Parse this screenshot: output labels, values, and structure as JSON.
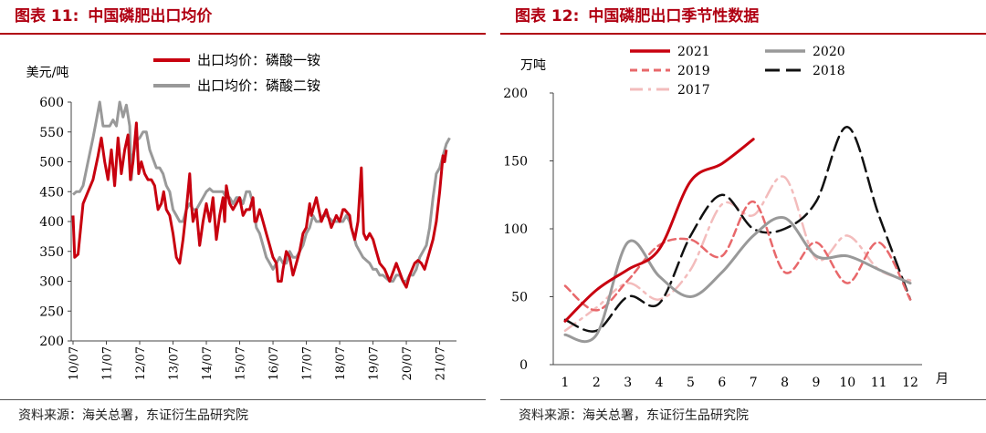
{
  "colors": {
    "accent": "#b00012",
    "red": "#c8000f",
    "gray": "#999999",
    "pink": "#e8686b",
    "black": "#111111",
    "lightpink": "#f3bcbc"
  },
  "left": {
    "title_num": "图表 11:",
    "title_name": "中国磷肥出口均价",
    "source": "资料来源：海关总署，东证衍生品研究院"
  },
  "right": {
    "title_num": "图表 12:",
    "title_name": "中国磷肥出口季节性数据",
    "source": "资料来源：海关总署，东证衍生品研究院"
  },
  "chart_data": [
    {
      "type": "line",
      "ylabel": "美元/吨",
      "ylim": [
        200,
        600
      ],
      "yticks": [
        "200",
        "250",
        "300",
        "350",
        "400",
        "450",
        "500",
        "550",
        "600"
      ],
      "xticks": [
        "10/07",
        "11/07",
        "12/07",
        "13/07",
        "14/07",
        "15/07",
        "16/07",
        "17/07",
        "18/07",
        "19/07",
        "20/07",
        "21/07"
      ],
      "legend_position": "top",
      "series": [
        {
          "name": "出口均价：磷酸一铵",
          "color": "#c8000f",
          "points": [
            [
              0,
              410
            ],
            [
              0.05,
              340
            ],
            [
              0.15,
              345
            ],
            [
              0.3,
              430
            ],
            [
              0.45,
              450
            ],
            [
              0.6,
              470
            ],
            [
              0.75,
              510
            ],
            [
              0.85,
              540
            ],
            [
              0.95,
              500
            ],
            [
              1.05,
              470
            ],
            [
              1.15,
              520
            ],
            [
              1.25,
              460
            ],
            [
              1.35,
              540
            ],
            [
              1.45,
              480
            ],
            [
              1.55,
              520
            ],
            [
              1.65,
              545
            ],
            [
              1.72,
              470
            ],
            [
              1.8,
              500
            ],
            [
              1.9,
              565
            ],
            [
              1.97,
              480
            ],
            [
              2.05,
              500
            ],
            [
              2.15,
              480
            ],
            [
              2.25,
              470
            ],
            [
              2.35,
              470
            ],
            [
              2.45,
              460
            ],
            [
              2.55,
              420
            ],
            [
              2.65,
              430
            ],
            [
              2.72,
              450
            ],
            [
              2.8,
              420
            ],
            [
              2.9,
              410
            ],
            [
              3.0,
              380
            ],
            [
              3.1,
              340
            ],
            [
              3.2,
              330
            ],
            [
              3.3,
              370
            ],
            [
              3.4,
              420
            ],
            [
              3.5,
              480
            ],
            [
              3.55,
              430
            ],
            [
              3.6,
              400
            ],
            [
              3.7,
              420
            ],
            [
              3.8,
              360
            ],
            [
              3.9,
              400
            ],
            [
              4.0,
              430
            ],
            [
              4.1,
              400
            ],
            [
              4.2,
              440
            ],
            [
              4.3,
              370
            ],
            [
              4.4,
              410
            ],
            [
              4.5,
              440
            ],
            [
              4.55,
              400
            ],
            [
              4.6,
              460
            ],
            [
              4.7,
              430
            ],
            [
              4.8,
              420
            ],
            [
              4.9,
              430
            ],
            [
              5.0,
              440
            ],
            [
              5.1,
              410
            ],
            [
              5.2,
              420
            ],
            [
              5.3,
              420
            ],
            [
              5.4,
              440
            ],
            [
              5.45,
              400
            ],
            [
              5.5,
              400
            ],
            [
              5.6,
              420
            ],
            [
              5.7,
              400
            ],
            [
              5.8,
              380
            ],
            [
              5.9,
              360
            ],
            [
              6.0,
              340
            ],
            [
              6.1,
              330
            ],
            [
              6.15,
              300
            ],
            [
              6.25,
              300
            ],
            [
              6.3,
              320
            ],
            [
              6.4,
              350
            ],
            [
              6.5,
              340
            ],
            [
              6.6,
              310
            ],
            [
              6.7,
              330
            ],
            [
              6.8,
              350
            ],
            [
              6.9,
              380
            ],
            [
              7.0,
              390
            ],
            [
              7.1,
              430
            ],
            [
              7.15,
              410
            ],
            [
              7.3,
              440
            ],
            [
              7.45,
              400
            ],
            [
              7.6,
              420
            ],
            [
              7.75,
              390
            ],
            [
              7.9,
              410
            ],
            [
              8.0,
              400
            ],
            [
              8.1,
              420
            ],
            [
              8.15,
              420
            ],
            [
              8.3,
              410
            ],
            [
              8.35,
              390
            ],
            [
              8.45,
              370
            ],
            [
              8.55,
              400
            ],
            [
              8.65,
              490
            ],
            [
              8.72,
              380
            ],
            [
              8.8,
              370
            ],
            [
              8.9,
              380
            ],
            [
              9.0,
              370
            ],
            [
              9.1,
              350
            ],
            [
              9.2,
              330
            ],
            [
              9.35,
              320
            ],
            [
              9.5,
              300
            ],
            [
              9.7,
              330
            ],
            [
              9.9,
              300
            ],
            [
              10.0,
              290
            ],
            [
              10.1,
              310
            ],
            [
              10.25,
              330
            ],
            [
              10.35,
              335
            ],
            [
              10.45,
              330
            ],
            [
              10.55,
              320
            ],
            [
              10.7,
              350
            ],
            [
              10.8,
              370
            ],
            [
              10.9,
              400
            ],
            [
              11.0,
              450
            ],
            [
              11.1,
              510
            ],
            [
              11.15,
              500
            ],
            [
              11.2,
              520
            ]
          ]
        },
        {
          "name": "出口均价：磷酸二铵",
          "color": "#999999",
          "points": [
            [
              0,
              445
            ],
            [
              0.1,
              450
            ],
            [
              0.2,
              450
            ],
            [
              0.3,
              460
            ],
            [
              0.45,
              500
            ],
            [
              0.6,
              540
            ],
            [
              0.7,
              570
            ],
            [
              0.8,
              600
            ],
            [
              0.9,
              560
            ],
            [
              1.0,
              560
            ],
            [
              1.1,
              560
            ],
            [
              1.2,
              570
            ],
            [
              1.3,
              560
            ],
            [
              1.4,
              600
            ],
            [
              1.5,
              575
            ],
            [
              1.6,
              595
            ],
            [
              1.7,
              560
            ],
            [
              1.75,
              470
            ],
            [
              1.8,
              510
            ],
            [
              1.9,
              535
            ],
            [
              2.0,
              540
            ],
            [
              2.1,
              550
            ],
            [
              2.2,
              550
            ],
            [
              2.3,
              520
            ],
            [
              2.4,
              505
            ],
            [
              2.5,
              490
            ],
            [
              2.6,
              490
            ],
            [
              2.7,
              480
            ],
            [
              2.8,
              460
            ],
            [
              2.9,
              450
            ],
            [
              3.0,
              420
            ],
            [
              3.1,
              410
            ],
            [
              3.2,
              400
            ],
            [
              3.3,
              400
            ],
            [
              3.4,
              420
            ],
            [
              3.5,
              430
            ],
            [
              3.6,
              420
            ],
            [
              3.7,
              420
            ],
            [
              3.8,
              430
            ],
            [
              3.9,
              440
            ],
            [
              4.0,
              450
            ],
            [
              4.1,
              455
            ],
            [
              4.2,
              450
            ],
            [
              4.3,
              450
            ],
            [
              4.4,
              450
            ],
            [
              4.5,
              450
            ],
            [
              4.6,
              440
            ],
            [
              4.7,
              440
            ],
            [
              4.8,
              430
            ],
            [
              4.9,
              440
            ],
            [
              5.0,
              440
            ],
            [
              5.1,
              430
            ],
            [
              5.2,
              450
            ],
            [
              5.3,
              450
            ],
            [
              5.4,
              430
            ],
            [
              5.5,
              390
            ],
            [
              5.6,
              380
            ],
            [
              5.7,
              360
            ],
            [
              5.8,
              340
            ],
            [
              5.9,
              330
            ],
            [
              6.0,
              320
            ],
            [
              6.1,
              330
            ],
            [
              6.2,
              340
            ],
            [
              6.3,
              330
            ],
            [
              6.4,
              330
            ],
            [
              6.5,
              350
            ],
            [
              6.6,
              340
            ],
            [
              6.7,
              340
            ],
            [
              6.8,
              350
            ],
            [
              6.9,
              360
            ],
            [
              7.0,
              380
            ],
            [
              7.1,
              390
            ],
            [
              7.2,
              410
            ],
            [
              7.3,
              400
            ],
            [
              7.4,
              400
            ],
            [
              7.5,
              410
            ],
            [
              7.6,
              410
            ],
            [
              7.7,
              405
            ],
            [
              7.8,
              400
            ],
            [
              7.9,
              400
            ],
            [
              8.0,
              400
            ],
            [
              8.1,
              400
            ],
            [
              8.2,
              410
            ],
            [
              8.3,
              400
            ],
            [
              8.4,
              380
            ],
            [
              8.5,
              360
            ],
            [
              8.6,
              350
            ],
            [
              8.7,
              340
            ],
            [
              8.8,
              335
            ],
            [
              8.9,
              330
            ],
            [
              9.0,
              320
            ],
            [
              9.1,
              320
            ],
            [
              9.2,
              310
            ],
            [
              9.3,
              310
            ],
            [
              9.4,
              305
            ],
            [
              9.5,
              300
            ],
            [
              9.6,
              300
            ],
            [
              9.7,
              310
            ],
            [
              9.8,
              310
            ],
            [
              9.9,
              300
            ],
            [
              10.0,
              300
            ],
            [
              10.1,
              310
            ],
            [
              10.2,
              310
            ],
            [
              10.3,
              320
            ],
            [
              10.4,
              340
            ],
            [
              10.5,
              350
            ],
            [
              10.6,
              360
            ],
            [
              10.7,
              390
            ],
            [
              10.8,
              440
            ],
            [
              10.9,
              480
            ],
            [
              11.0,
              490
            ],
            [
              11.1,
              510
            ],
            [
              11.2,
              530
            ],
            [
              11.3,
              540
            ]
          ]
        }
      ]
    },
    {
      "type": "line",
      "ylabel": "万吨",
      "xlabel": "月",
      "ylim": [
        0,
        200
      ],
      "yticks": [
        "0",
        "50",
        "100",
        "150",
        "200"
      ],
      "xticks": [
        "1",
        "2",
        "3",
        "4",
        "5",
        "6",
        "7",
        "8",
        "9",
        "10",
        "11",
        "12"
      ],
      "legend_position": "top",
      "series": [
        {
          "name": "2021",
          "color": "#c8000f",
          "dash": "solid",
          "width": 3,
          "values": [
            32,
            55,
            70,
            85,
            135,
            148,
            166,
            null,
            null,
            null,
            null,
            null
          ]
        },
        {
          "name": "2020",
          "color": "#999999",
          "dash": "solid",
          "width": 3,
          "values": [
            22,
            22,
            90,
            65,
            50,
            68,
            95,
            108,
            80,
            80,
            70,
            60
          ]
        },
        {
          "name": "2019",
          "color": "#e8686b",
          "dash": "dash",
          "width": 2.5,
          "values": [
            58,
            40,
            62,
            88,
            92,
            80,
            120,
            68,
            90,
            60,
            90,
            48
          ]
        },
        {
          "name": "2018",
          "color": "#111111",
          "dash": "longdash",
          "width": 2.5,
          "values": [
            33,
            25,
            50,
            45,
            95,
            125,
            100,
            100,
            120,
            175,
            110,
            48
          ]
        },
        {
          "name": "2017",
          "color": "#f3bcbc",
          "dash": "dashdot",
          "width": 2.5,
          "values": [
            25,
            42,
            60,
            48,
            70,
            118,
            110,
            138,
            78,
            95,
            70,
            62
          ]
        }
      ]
    }
  ]
}
